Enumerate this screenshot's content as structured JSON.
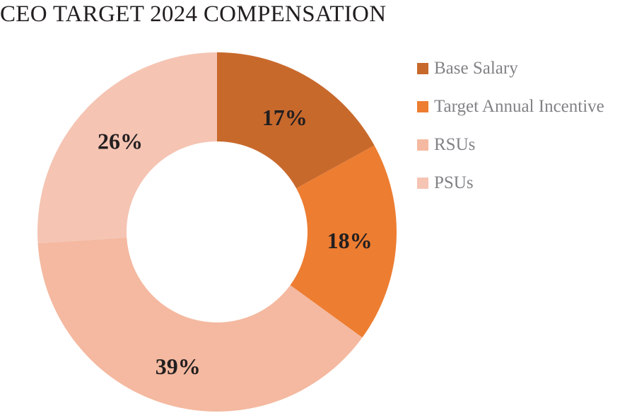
{
  "chart_data": {
    "type": "pie",
    "style": "donut",
    "title": "CEO TARGET 2024 COMPENSATION",
    "categories": [
      "Base Salary",
      "Target Annual Incentive",
      "RSUs",
      "PSUs"
    ],
    "values": [
      17,
      18,
      39,
      26
    ],
    "labels": [
      "17%",
      "18%",
      "39%",
      "26%"
    ],
    "unit": "%",
    "colors": [
      "#c8692c",
      "#ed7d31",
      "#f4b9a0",
      "#f5c4b3"
    ],
    "legend_position": "right",
    "start_angle": "12 o'clock",
    "direction": "clockwise"
  }
}
